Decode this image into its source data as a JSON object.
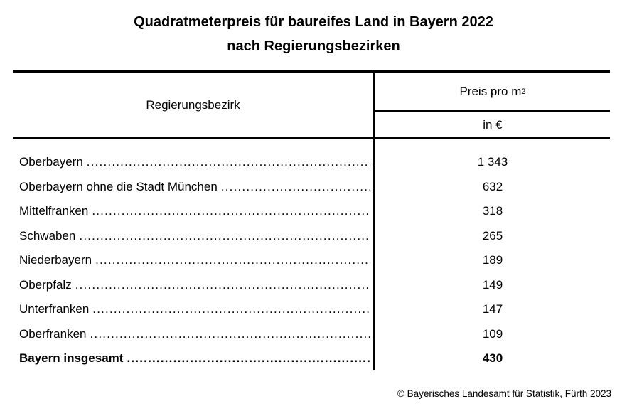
{
  "title": {
    "line1": "Quadratmeterpreis für baureifes Land in Bayern 2022",
    "line2": "nach Regierungsbezirken"
  },
  "table": {
    "col1_header": "Regierungsbezirk",
    "col2_header_base": "Preis pro m",
    "col2_header_sup": "2",
    "col2_subheader": "in €",
    "rows": [
      {
        "label": "Oberbayern",
        "value": "1 343"
      },
      {
        "label": "Oberbayern ohne die Stadt München",
        "value": "632"
      },
      {
        "label": "Mittelfranken",
        "value": "318"
      },
      {
        "label": "Schwaben",
        "value": "265"
      },
      {
        "label": "Niederbayern",
        "value": "189"
      },
      {
        "label": "Oberpfalz",
        "value": "149"
      },
      {
        "label": "Unterfranken",
        "value": "147"
      },
      {
        "label": "Oberfranken",
        "value": "109"
      },
      {
        "label": "Bayern insgesamt",
        "value": "430",
        "bold": true
      }
    ]
  },
  "footer": {
    "copyright": "© Bayerisches Landesamt für Statistik, Fürth 2023"
  },
  "colors": {
    "text": "#000000",
    "background": "#ffffff",
    "line": "#000000"
  },
  "chart_data": {
    "type": "table",
    "title": "Quadratmeterpreis für baureifes Land in Bayern 2022 nach Regierungsbezirken",
    "columns": [
      "Regierungsbezirk",
      "Preis pro m2 in €"
    ],
    "categories": [
      "Oberbayern",
      "Oberbayern ohne die Stadt München",
      "Mittelfranken",
      "Schwaben",
      "Niederbayern",
      "Oberpfalz",
      "Unterfranken",
      "Oberfranken",
      "Bayern insgesamt"
    ],
    "values": [
      1343,
      632,
      318,
      265,
      189,
      149,
      147,
      109,
      430
    ]
  }
}
